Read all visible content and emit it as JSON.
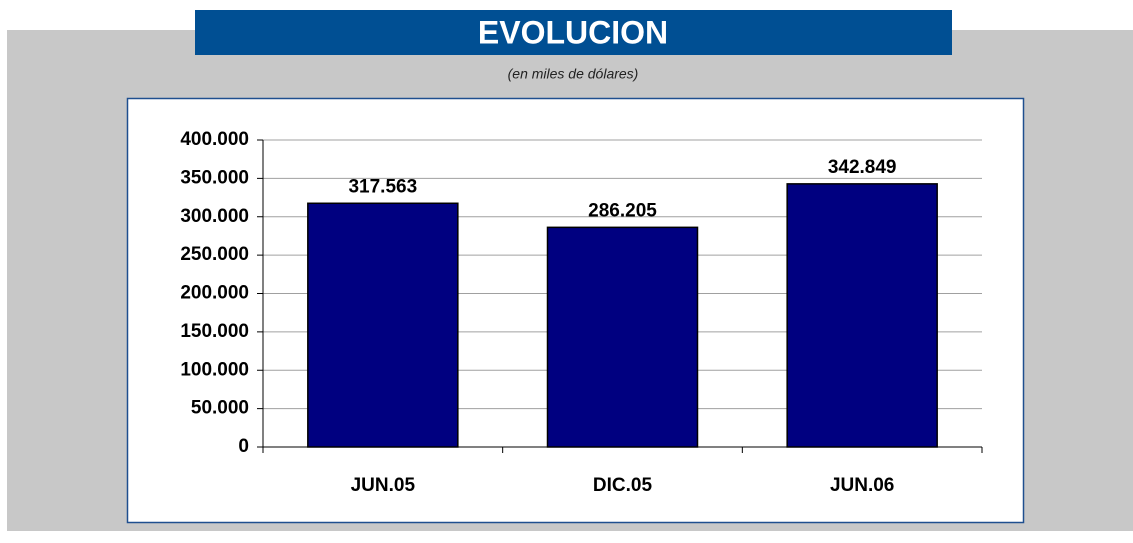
{
  "chart_data": {
    "type": "bar",
    "title": "EVOLUCION",
    "subtitle": "(en miles de dólares)",
    "categories": [
      "JUN.05",
      "DIC.05",
      "JUN.06"
    ],
    "values": [
      317563,
      286205,
      342849
    ],
    "value_labels": [
      "317.563",
      "286.205",
      "342.849"
    ],
    "color": "#000080",
    "ylim": [
      0,
      400000
    ],
    "yticks": [
      0,
      {
        "value": 50000,
        "label": "50.000"
      },
      {
        "value": 100000,
        "label": "100.000"
      },
      {
        "value": 150000,
        "label": "150.000"
      },
      {
        "value": 200000,
        "label": "200.000"
      },
      {
        "value": 250000,
        "label": "250.000"
      },
      {
        "value": 300000,
        "label": "300.000"
      },
      {
        "value": 350000,
        "label": "350.000"
      },
      {
        "value": 400000,
        "label": "400.000"
      }
    ],
    "grid": true
  }
}
